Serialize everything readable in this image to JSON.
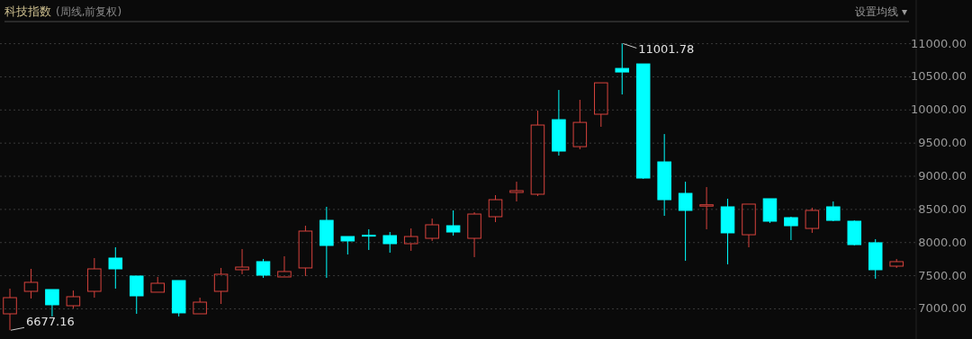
{
  "chart_data": {
    "type": "candlestick",
    "title": "科技指数",
    "subtitle": "(周线,前复权)",
    "categories": [
      null,
      null,
      null,
      null,
      null,
      null,
      null,
      null,
      null,
      null,
      null,
      null,
      null,
      null,
      null,
      null,
      null,
      null,
      null,
      null,
      null,
      null,
      null,
      null,
      null,
      null,
      null,
      null,
      null,
      null,
      null,
      null,
      null,
      null,
      null,
      null,
      null,
      null,
      null,
      null,
      null,
      null,
      null
    ],
    "ohlc": [
      [
        6925,
        7305,
        6677.16,
        7169
      ],
      [
        7264,
        7603,
        7156,
        7400
      ],
      [
        7291,
        7291,
        6885,
        7061
      ],
      [
        7047,
        7277,
        7007,
        7183
      ],
      [
        7264,
        7766,
        7169,
        7603
      ],
      [
        7766,
        7929,
        7305,
        7603
      ],
      [
        7495,
        7495,
        6925,
        7196
      ],
      [
        7251,
        7481,
        7251,
        7386
      ],
      [
        7427,
        7427,
        6885,
        6939
      ],
      [
        6925,
        7169,
        6925,
        7101
      ],
      [
        7264,
        7617,
        7074,
        7522
      ],
      [
        7590,
        7902,
        7522,
        7630
      ],
      [
        7712,
        7752,
        7468,
        7508
      ],
      [
        7481,
        7793,
        7481,
        7563
      ],
      [
        7617,
        8254,
        7495,
        8173
      ],
      [
        8335,
        8539,
        7468,
        7956
      ],
      [
        8091,
        8091,
        7820,
        8024
      ],
      [
        8110,
        8200,
        7888,
        8100
      ],
      [
        8105,
        8159,
        7847,
        7983
      ],
      [
        7983,
        8213,
        7875,
        8091
      ],
      [
        8064,
        8362,
        8024,
        8268
      ],
      [
        8254,
        8485,
        8105,
        8159
      ],
      [
        8064,
        8457,
        7780,
        8430
      ],
      [
        8390,
        8715,
        8308,
        8647
      ],
      [
        8756,
        8918,
        8620,
        8783
      ],
      [
        8729,
        9990,
        8702,
        9773
      ],
      [
        9854,
        10302,
        9312,
        9380
      ],
      [
        9447,
        10153,
        9407,
        9813
      ],
      [
        9936,
        10410,
        9746,
        10410
      ],
      [
        10627,
        11001.78,
        10234,
        10573
      ],
      [
        10695,
        10695,
        8960,
        8973
      ],
      [
        9217,
        9637,
        8403,
        8647
      ],
      [
        8742,
        8918,
        7725,
        8485
      ],
      [
        8550,
        8837,
        8200,
        8570
      ],
      [
        8539,
        8661,
        7671,
        8146
      ],
      [
        8118,
        8580,
        7929,
        8580
      ],
      [
        8661,
        8661,
        8295,
        8322
      ],
      [
        8376,
        8390,
        8037,
        8254
      ],
      [
        8213,
        8525,
        8146,
        8485
      ],
      [
        8539,
        8620,
        8322,
        8335
      ],
      [
        8322,
        8335,
        7956,
        7969
      ],
      [
        7997,
        8051,
        7454,
        7590
      ],
      [
        7644,
        7752,
        7617,
        7712
      ]
    ],
    "colors": [
      "#d8433d",
      "#d8433d",
      "#00ffff",
      "#d8433d",
      "#d8433d",
      "#00ffff",
      "#00ffff",
      "#d8433d",
      "#00ffff",
      "#d8433d",
      "#d8433d",
      "#d8433d",
      "#00ffff",
      "#d8433d",
      "#d8433d",
      "#00ffff",
      "#00ffff",
      "#00ffff",
      "#00ffff",
      "#d8433d",
      "#d8433d",
      "#00ffff",
      "#d8433d",
      "#d8433d",
      "#d8433d",
      "#d8433d",
      "#00ffff",
      "#d8433d",
      "#d8433d",
      "#00ffff",
      "#00ffff",
      "#00ffff",
      "#00ffff",
      "#d8433d",
      "#00ffff",
      "#d8433d",
      "#00ffff",
      "#00ffff",
      "#d8433d",
      "#00ffff",
      "#00ffff",
      "#00ffff",
      "#d8433d"
    ],
    "ylim": [
      6545,
      11320
    ],
    "yticks": [
      {
        "value": 7000,
        "label": "7000.00"
      },
      {
        "value": 7500,
        "label": "7500.00"
      },
      {
        "value": 8000,
        "label": "8000.00"
      },
      {
        "value": 8500,
        "label": "8500.00"
      },
      {
        "value": 9000,
        "label": "9000.00"
      },
      {
        "value": 9500,
        "label": "9500.00"
      },
      {
        "value": 10000,
        "label": "10000.00"
      },
      {
        "value": 10500,
        "label": "10500.00"
      },
      {
        "value": 11000,
        "label": "11000.00"
      }
    ],
    "grid": "y",
    "tick_labels": "y",
    "annotations": [
      "设置均线 ▾",
      "11001.78",
      "6677.16"
    ]
  }
}
